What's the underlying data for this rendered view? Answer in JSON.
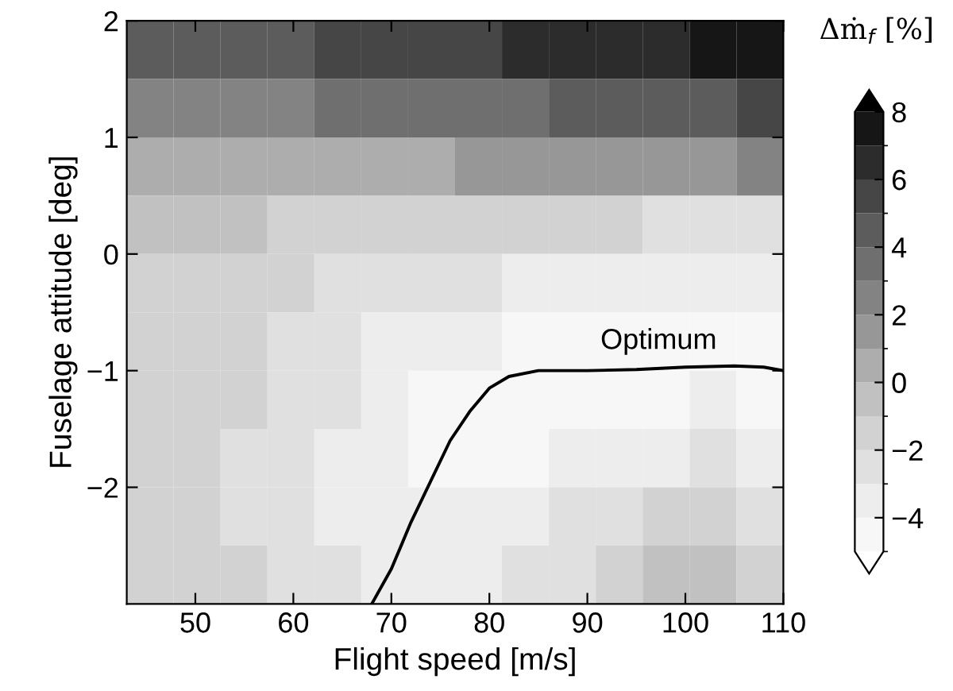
{
  "chart_data": {
    "type": "heatmap",
    "xlabel": "Flight speed [m/s]",
    "ylabel": "Fuselage attitude [deg]",
    "clabel": "Δṁ$_{f}$ [%]",
    "cells": [
      [
        4.5,
        4.5,
        4.6,
        4.8,
        5.0,
        5.2,
        5.5,
        5.8,
        6.0,
        6.3,
        6.6,
        6.9,
        7.2,
        7.5
      ],
      [
        2.5,
        2.5,
        2.6,
        2.8,
        3.0,
        3.2,
        3.4,
        3.6,
        3.8,
        4.0,
        4.3,
        4.6,
        4.8,
        5.0
      ],
      [
        0.5,
        0.5,
        0.5,
        0.6,
        0.7,
        0.8,
        0.9,
        1.0,
        1.2,
        1.3,
        1.5,
        1.7,
        1.9,
        2.0
      ],
      [
        -0.5,
        -0.7,
        -0.9,
        -1.1,
        -1.3,
        -1.5,
        -1.6,
        -1.7,
        -1.8,
        -1.9,
        -2.0,
        -2.1,
        -2.2,
        -2.2
      ],
      [
        -1.2,
        -1.4,
        -1.6,
        -1.9,
        -2.2,
        -2.5,
        -2.8,
        -3.0,
        -3.2,
        -3.3,
        -3.4,
        -3.5,
        -3.6,
        -3.6
      ],
      [
        -1.5,
        -1.6,
        -1.9,
        -2.3,
        -2.8,
        -3.3,
        -3.7,
        -4.0,
        -4.2,
        -4.3,
        -4.4,
        -4.5,
        -4.6,
        -4.6
      ],
      [
        -1.6,
        -1.7,
        -2.0,
        -2.5,
        -3.0,
        -3.6,
        -4.1,
        -4.4,
        -4.5,
        -4.5,
        -4.3,
        -4.1,
        -4.0,
        -4.2
      ],
      [
        -1.7,
        -1.8,
        -2.1,
        -2.6,
        -3.2,
        -3.8,
        -4.2,
        -4.4,
        -4.2,
        -3.8,
        -3.4,
        -3.1,
        -3.0,
        -3.3
      ],
      [
        -1.7,
        -1.8,
        -2.1,
        -2.6,
        -3.1,
        -3.6,
        -3.9,
        -3.9,
        -3.6,
        -3.0,
        -2.4,
        -2.0,
        -1.9,
        -2.3
      ],
      [
        -1.7,
        -1.8,
        -2.0,
        -2.4,
        -2.9,
        -3.3,
        -3.5,
        -3.4,
        -3.0,
        -2.3,
        -1.5,
        -0.9,
        -0.7,
        -1.2
      ]
    ],
    "clim": [
      -5,
      8
    ],
    "cticks": [
      {
        "value": -4,
        "label": "−4"
      },
      {
        "value": -2,
        "label": "−2"
      },
      0,
      2,
      4,
      6,
      8
    ],
    "series": [
      {
        "type": "line",
        "color": "#000000",
        "x": [
          68,
          70,
          72,
          74,
          76,
          78,
          80,
          82,
          85,
          90,
          95,
          100,
          105,
          108,
          110
        ],
        "values": [
          -3,
          -2.7,
          -2.3,
          -1.95,
          -1.6,
          -1.35,
          -1.15,
          -1.05,
          -1.0,
          -1.0,
          -0.99,
          -0.97,
          -0.96,
          -0.97,
          -1.0
        ]
      }
    ],
    "annotations": [
      "Optimum"
    ],
    "xlim": [
      43,
      110
    ],
    "xticks": [
      50,
      60,
      70,
      80,
      90,
      100,
      110
    ],
    "ylim": [
      -3,
      2
    ],
    "yticks": [
      {
        "value": -2,
        "label": "−2"
      },
      {
        "value": -1,
        "label": "−1"
      },
      0,
      1,
      2
    ]
  }
}
